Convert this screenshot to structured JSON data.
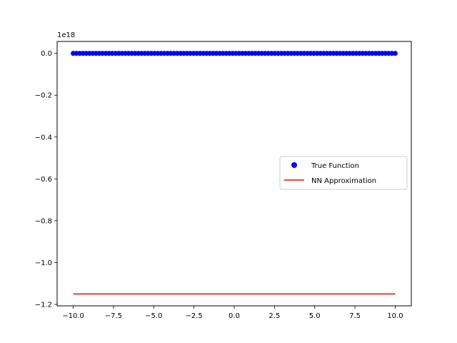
{
  "chart_data": {
    "type": "scatter",
    "title": "",
    "xlabel": "",
    "ylabel": "",
    "xlim": [
      -11.0,
      11.0
    ],
    "ylim": [
      -1.207,
      0.057
    ],
    "y_offset_label": "1e18",
    "x_ticks": [
      -10.0,
      -7.5,
      -5.0,
      -2.5,
      0.0,
      2.5,
      5.0,
      7.5,
      10.0
    ],
    "x_tick_labels": [
      "−10.0",
      "−7.5",
      "−5.0",
      "−2.5",
      "0.0",
      "2.5",
      "5.0",
      "7.5",
      "10.0"
    ],
    "y_ticks": [
      0.0,
      -0.2,
      -0.4,
      -0.6,
      -0.8,
      -1.0,
      -1.2
    ],
    "y_tick_labels": [
      "0.0",
      "−0.2",
      "−0.4",
      "−0.6",
      "−0.8",
      "−1.0",
      "−1.2"
    ],
    "grid": false,
    "legend_position": "center-right",
    "series": [
      {
        "name": "True Function",
        "kind": "scatter",
        "color": "#0000ff",
        "x_range": [
          -10,
          10
        ],
        "y_value": 0.0,
        "point_count": 100
      },
      {
        "name": "NN Approximation",
        "kind": "line",
        "color": "#ff0000",
        "x": [
          -10,
          10
        ],
        "y": [
          -1.15,
          -1.15
        ]
      }
    ]
  }
}
